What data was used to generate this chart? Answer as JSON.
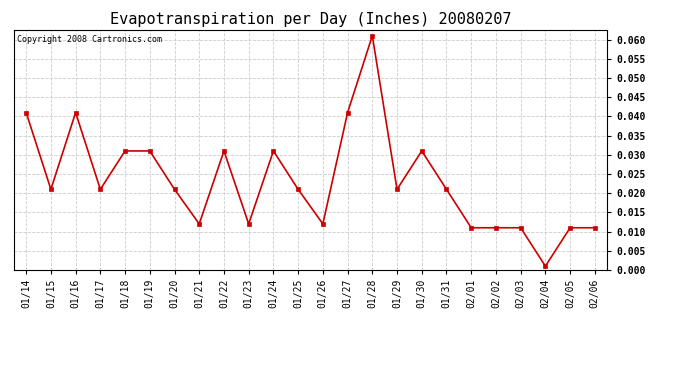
{
  "title": "Evapotranspiration per Day (Inches) 20080207",
  "copyright_text": "Copyright 2008 Cartronics.com",
  "categories": [
    "01/14",
    "01/15",
    "01/16",
    "01/17",
    "01/18",
    "01/19",
    "01/20",
    "01/21",
    "01/22",
    "01/23",
    "01/24",
    "01/25",
    "01/26",
    "01/27",
    "01/28",
    "01/29",
    "01/30",
    "01/31",
    "02/01",
    "02/02",
    "02/03",
    "02/04",
    "02/05",
    "02/06"
  ],
  "values": [
    0.041,
    0.021,
    0.041,
    0.021,
    0.031,
    0.031,
    0.021,
    0.012,
    0.031,
    0.012,
    0.031,
    0.021,
    0.012,
    0.041,
    0.061,
    0.021,
    0.031,
    0.021,
    0.011,
    0.011,
    0.011,
    0.001,
    0.011,
    0.011
  ],
  "line_color": "#cc0000",
  "marker": "s",
  "marker_size": 3,
  "ylim": [
    0.0,
    0.0625
  ],
  "yticks": [
    0.0,
    0.005,
    0.01,
    0.015,
    0.02,
    0.025,
    0.03,
    0.035,
    0.04,
    0.045,
    0.05,
    0.055,
    0.06
  ],
  "bg_color": "#ffffff",
  "grid_color": "#cccccc",
  "title_fontsize": 11,
  "copyright_fontsize": 6,
  "tick_fontsize": 7,
  "ytick_fontsize": 7
}
